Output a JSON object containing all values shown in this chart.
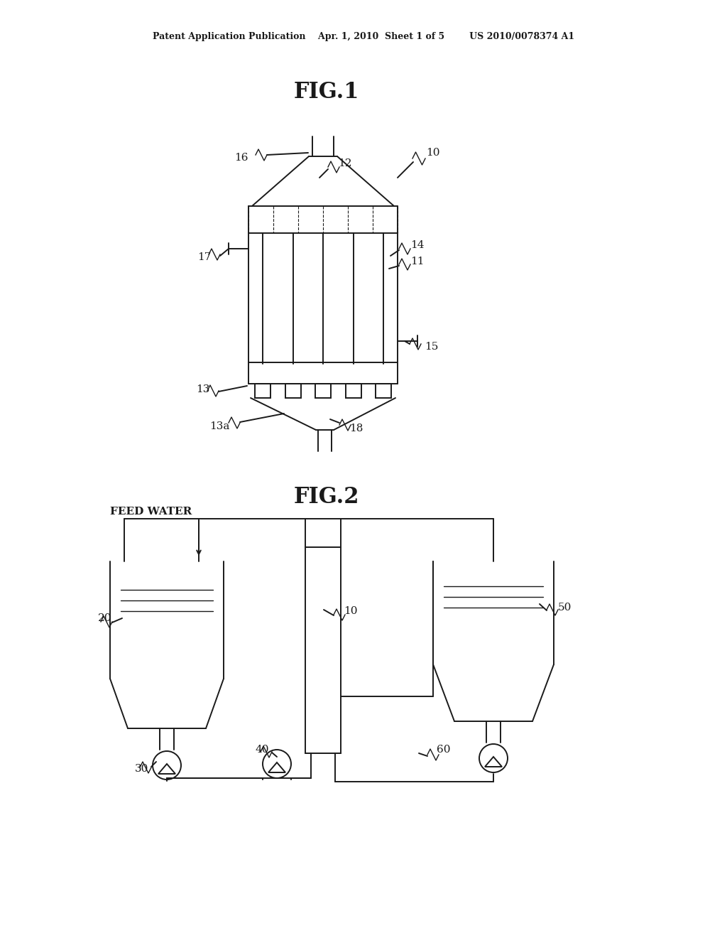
{
  "bg_color": "#ffffff",
  "lc": "#1a1a1a",
  "header": "Patent Application Publication    Apr. 1, 2010  Sheet 1 of 5        US 2010/0078374 A1",
  "fig1_title": "FIG.1",
  "fig2_title": "FIG.2",
  "lw": 1.4
}
